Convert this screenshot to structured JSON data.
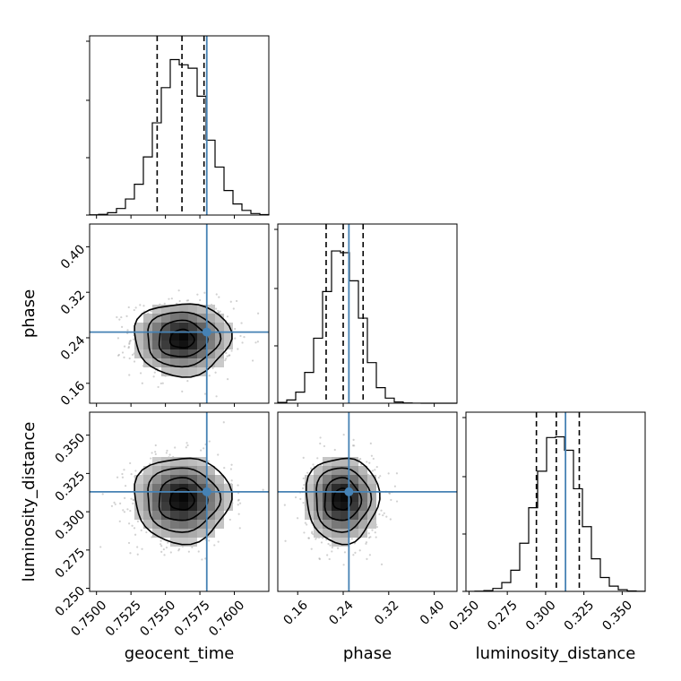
{
  "chart_data": {
    "type": "corner",
    "colors": {
      "truth": "#4682b4",
      "histogram": "#000000",
      "scatter": "#808080"
    },
    "parameters": [
      {
        "key": "geocent_time",
        "label": "geocent_time",
        "range": [
          0.7495,
          0.7625
        ],
        "ticks": [
          "0.7500",
          "0.7525",
          "0.7550",
          "0.7575",
          "0.7600"
        ],
        "tick_values": [
          0.75,
          0.7525,
          0.755,
          0.7575,
          0.76
        ],
        "truth": 0.758,
        "quantiles": [
          0.7544,
          0.7562,
          0.7578
        ],
        "mean": 0.7562,
        "sd": 0.00175
      },
      {
        "key": "phase",
        "label": "phase",
        "range": [
          0.125,
          0.44
        ],
        "ticks": [
          "0.16",
          "0.24",
          "0.32",
          "0.40"
        ],
        "tick_values": [
          0.16,
          0.24,
          0.32,
          0.4
        ],
        "truth": 0.25,
        "quantiles": [
          0.21,
          0.24,
          0.275
        ],
        "mean": 0.238,
        "sd": 0.032
      },
      {
        "key": "luminosity_distance",
        "label": "luminosity_distance",
        "range": [
          0.248,
          0.365
        ],
        "ticks": [
          "0.250",
          "0.275",
          "0.300",
          "0.325",
          "0.350"
        ],
        "tick_values": [
          0.25,
          0.275,
          0.3,
          0.325,
          0.35
        ],
        "truth": 0.313,
        "quantiles": [
          0.294,
          0.307,
          0.322
        ],
        "mean": 0.308,
        "sd": 0.014
      }
    ],
    "grid": true
  }
}
